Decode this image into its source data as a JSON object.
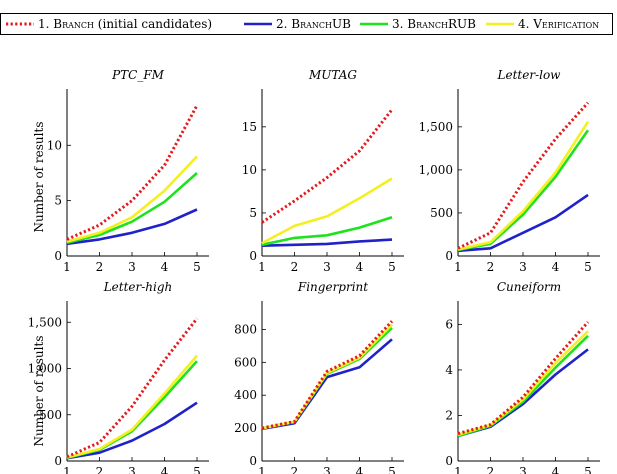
{
  "legend": {
    "items": [
      {
        "prefix": "1. ",
        "name": "Branch",
        "suffix": " (initial candidates)",
        "color": "#e41a1c",
        "dash": "dotted"
      },
      {
        "prefix": "2. ",
        "name": "BranchUB",
        "suffix": "",
        "color": "#1f22c9",
        "dash": "solid"
      },
      {
        "prefix": "3. ",
        "name": "BranchRUB",
        "suffix": "",
        "color": "#1fe21f",
        "dash": "solid"
      },
      {
        "prefix": "4. ",
        "name": "Verification",
        "suffix": "",
        "color": "#f4ef20",
        "dash": "solid"
      }
    ]
  },
  "y_label": "Number of results",
  "chart_data": [
    {
      "type": "line",
      "title": "PTC_FM",
      "x": [
        1,
        2,
        3,
        4,
        5
      ],
      "ylim": [
        0,
        14
      ],
      "yticks": [
        0,
        5,
        10
      ],
      "ytick_labels": [
        "0",
        "5",
        "10"
      ],
      "series": [
        {
          "name": "1. Branch (initial candidates)",
          "values": [
            1.5,
            2.8,
            5.0,
            8.2,
            13.6
          ]
        },
        {
          "name": "2. BranchUB",
          "values": [
            1.1,
            1.5,
            2.1,
            2.9,
            4.2
          ]
        },
        {
          "name": "3. BranchRUB",
          "values": [
            1.2,
            1.9,
            3.1,
            4.9,
            7.5
          ]
        },
        {
          "name": "4. Verification",
          "values": [
            1.3,
            2.1,
            3.5,
            5.9,
            9.0
          ]
        }
      ]
    },
    {
      "type": "line",
      "title": "MUTAG",
      "x": [
        1,
        2,
        3,
        4,
        5
      ],
      "ylim": [
        0,
        18
      ],
      "yticks": [
        0,
        5,
        10,
        15
      ],
      "ytick_labels": [
        "0",
        "5",
        "10",
        "15"
      ],
      "series": [
        {
          "name": "1. Branch (initial candidates)",
          "values": [
            3.9,
            6.4,
            9.1,
            12.2,
            17.0
          ]
        },
        {
          "name": "2. BranchUB",
          "values": [
            1.2,
            1.3,
            1.4,
            1.7,
            1.9
          ]
        },
        {
          "name": "3. BranchRUB",
          "values": [
            1.3,
            2.1,
            2.4,
            3.3,
            4.5
          ]
        },
        {
          "name": "4. Verification",
          "values": [
            1.5,
            3.5,
            4.6,
            6.7,
            9.0
          ]
        }
      ]
    },
    {
      "type": "line",
      "title": "Letter-low",
      "x": [
        1,
        2,
        3,
        4,
        5
      ],
      "ylim": [
        0,
        1800
      ],
      "yticks": [
        0,
        500,
        1000,
        1500
      ],
      "ytick_labels": [
        "0",
        "500",
        "1,000",
        "1,500"
      ],
      "series": [
        {
          "name": "1. Branch (initial candidates)",
          "values": [
            90,
            270,
            860,
            1360,
            1780
          ]
        },
        {
          "name": "2. BranchUB",
          "values": [
            60,
            90,
            270,
            450,
            710
          ]
        },
        {
          "name": "3. BranchRUB",
          "values": [
            70,
            140,
            480,
            920,
            1460
          ]
        },
        {
          "name": "4. Verification",
          "values": [
            75,
            160,
            520,
            970,
            1560
          ]
        }
      ]
    },
    {
      "type": "line",
      "title": "Letter-high",
      "x": [
        1,
        2,
        3,
        4,
        5
      ],
      "ylim": [
        0,
        1600
      ],
      "yticks": [
        0,
        500,
        1000,
        1500
      ],
      "ytick_labels": [
        "0",
        "500",
        "1,000",
        "1,500"
      ],
      "series": [
        {
          "name": "1. Branch (initial candidates)",
          "values": [
            45,
            200,
            590,
            1090,
            1540
          ]
        },
        {
          "name": "2. BranchUB",
          "values": [
            30,
            90,
            220,
            400,
            630
          ]
        },
        {
          "name": "3. BranchRUB",
          "values": [
            35,
            120,
            320,
            690,
            1080
          ]
        },
        {
          "name": "4. Verification",
          "values": [
            38,
            130,
            340,
            730,
            1140
          ]
        }
      ]
    },
    {
      "type": "line",
      "title": "Fingerprint",
      "x": [
        1,
        2,
        3,
        4,
        5
      ],
      "ylim": [
        0,
        900
      ],
      "yticks": [
        0,
        200,
        400,
        600,
        800
      ],
      "ytick_labels": [
        "0",
        "200",
        "400",
        "600",
        "800"
      ],
      "series": [
        {
          "name": "1. Branch (initial candidates)",
          "values": [
            200,
            240,
            545,
            640,
            850
          ]
        },
        {
          "name": "2. BranchUB",
          "values": [
            195,
            230,
            510,
            570,
            740
          ]
        },
        {
          "name": "3. BranchRUB",
          "values": [
            198,
            238,
            530,
            620,
            810
          ]
        },
        {
          "name": "4. Verification",
          "values": [
            199,
            239,
            535,
            628,
            830
          ]
        }
      ]
    },
    {
      "type": "line",
      "title": "Cuneiform",
      "x": [
        1,
        2,
        3,
        4,
        5
      ],
      "ylim": [
        0,
        6.5
      ],
      "yticks": [
        0,
        2,
        4,
        6
      ],
      "ytick_labels": [
        "0",
        "2",
        "4",
        "6"
      ],
      "series": [
        {
          "name": "1. Branch (initial candidates)",
          "values": [
            1.2,
            1.6,
            2.8,
            4.5,
            6.1
          ]
        },
        {
          "name": "2. BranchUB",
          "values": [
            1.1,
            1.5,
            2.5,
            3.8,
            4.9
          ]
        },
        {
          "name": "3. BranchRUB",
          "values": [
            1.1,
            1.55,
            2.6,
            4.1,
            5.5
          ]
        },
        {
          "name": "4. Verification",
          "values": [
            1.15,
            1.58,
            2.7,
            4.3,
            5.7
          ]
        }
      ]
    }
  ]
}
